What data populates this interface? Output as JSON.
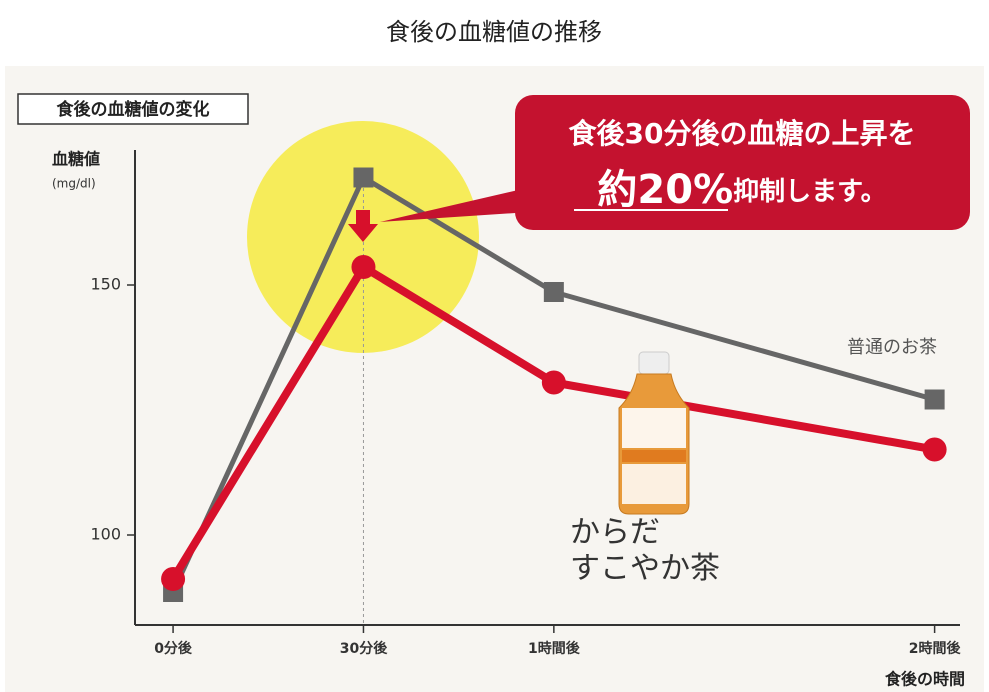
{
  "chart_data": {
    "type": "line",
    "title": "食後の血糖値の推移",
    "panel_label": "食後の血糖値の変化",
    "ylabel": "血糖値",
    "yunit": "(mg/dl)",
    "xlabel": "食後の時間",
    "x": [
      0,
      30,
      60,
      120
    ],
    "xlim": [
      -6,
      124
    ],
    "xticks": [
      {
        "value": 0,
        "label": "0分後"
      },
      {
        "value": 30,
        "label": "30分後"
      },
      {
        "value": 60,
        "label": "1時間後"
      },
      {
        "value": 120,
        "label": "2時間後"
      }
    ],
    "ylim": [
      82,
      177
    ],
    "yticks": [
      100,
      150
    ],
    "series": [
      {
        "name": "普通のお茶",
        "color": "#666666",
        "values": [
          88.6,
          171.5,
          148.6,
          127.1
        ]
      },
      {
        "name": "からだ\nすこやか茶",
        "color": "#d7102b",
        "values": [
          91.2,
          153.6,
          130.5,
          117.1
        ]
      }
    ],
    "annotations": {
      "line1": "食後30分後の血糖の上昇を",
      "emphasis": "約20%",
      "rest": "抑制します。"
    }
  }
}
